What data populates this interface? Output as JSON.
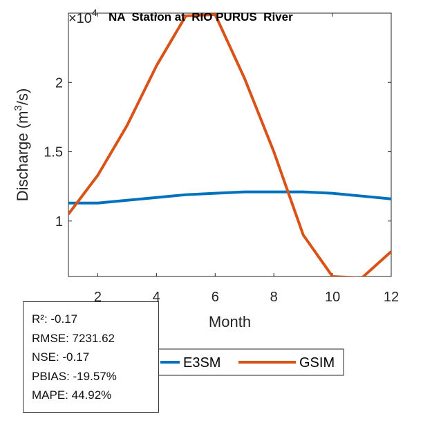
{
  "chart_data": {
    "type": "line",
    "title": "NA  Station at  RIO PURUS  River",
    "xlabel": "Month",
    "ylabel": "Discharge (m3/s)",
    "ylabel_parts": {
      "base": "Discharge (m",
      "sup": "3",
      "tail": "/s)"
    },
    "y_multiplier": {
      "base": "×10",
      "exp": "4"
    },
    "x": [
      1,
      2,
      3,
      4,
      5,
      6,
      7,
      8,
      9,
      10,
      11,
      12
    ],
    "xlim": [
      1,
      12
    ],
    "ylim": [
      0.6,
      2.5
    ],
    "x_ticks": [
      2,
      4,
      6,
      8,
      10,
      12
    ],
    "y_ticks": [
      1,
      1.5,
      2
    ],
    "y_tick_labels": [
      "1",
      "1.5",
      "2"
    ],
    "series": [
      {
        "name": "E3SM",
        "color": "#0072BD",
        "values": [
          1.13,
          1.13,
          1.15,
          1.17,
          1.19,
          1.2,
          1.21,
          1.21,
          1.21,
          1.2,
          1.18,
          1.16
        ]
      },
      {
        "name": "GSIM",
        "color": "#D95319",
        "values": [
          1.05,
          1.33,
          1.69,
          2.12,
          2.48,
          2.49,
          2.03,
          1.5,
          0.9,
          0.6,
          0.59,
          0.78
        ]
      }
    ],
    "legend": {
      "entries": [
        "E3SM",
        "GSIM"
      ],
      "placement": "bottom-center"
    },
    "grid": false
  },
  "stats": {
    "r2": "R²: -0.17",
    "rmse": "RMSE: 7231.62",
    "nse": "NSE: -0.17",
    "pbias": "PBIAS: -19.57%",
    "mape": "MAPE: 44.92%"
  }
}
